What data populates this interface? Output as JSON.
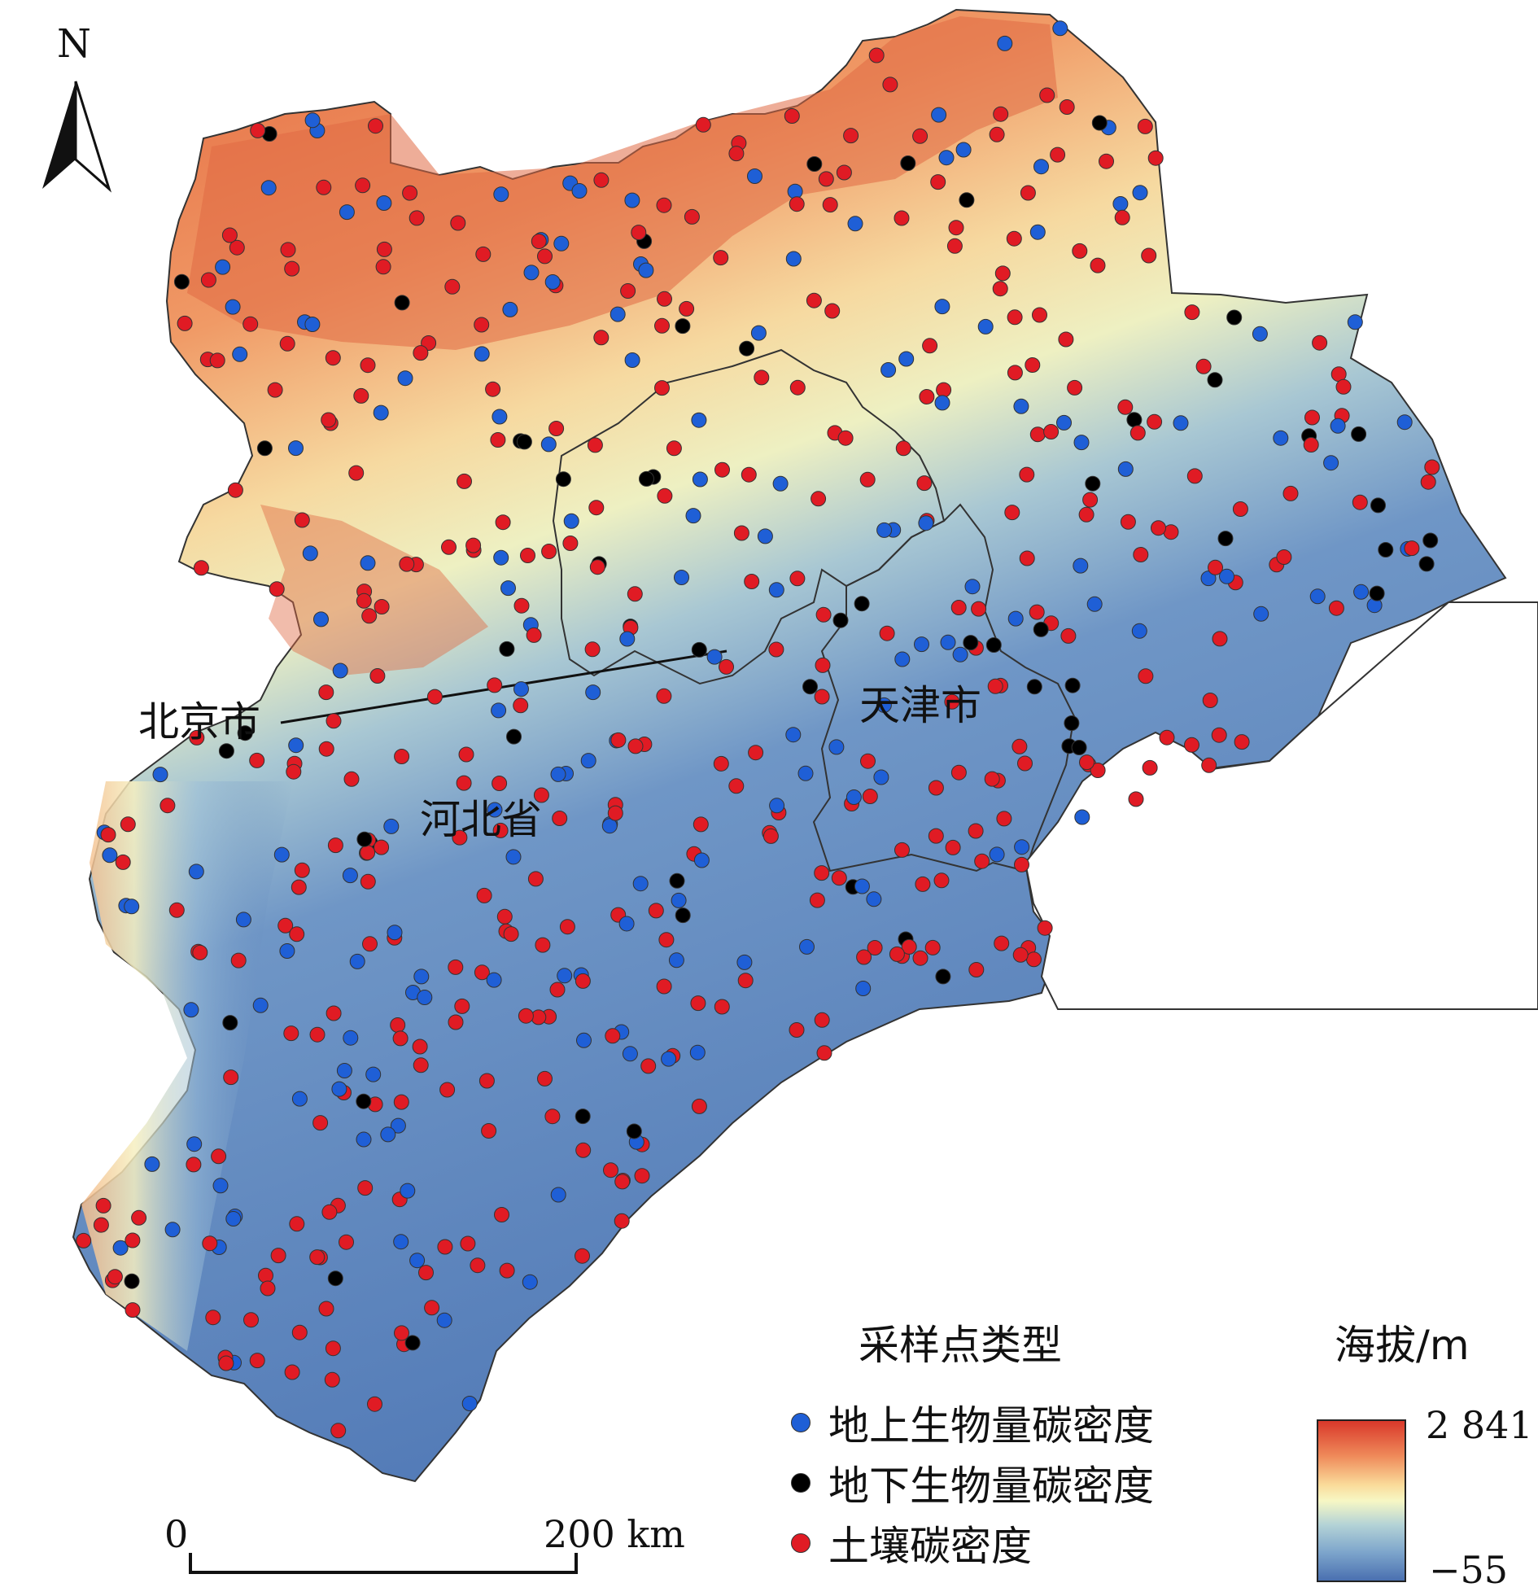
{
  "north": {
    "label": "N"
  },
  "places": {
    "beijing": "北京市",
    "tianjin": "天津市",
    "hebei": "河北省"
  },
  "legend": {
    "title": "采样点类型",
    "items": [
      {
        "label": "地上生物量碳密度",
        "color": "#1f5fd6"
      },
      {
        "label": "地下生物量碳密度",
        "color": "#000000"
      },
      {
        "label": "土壤碳密度",
        "color": "#e01b24"
      }
    ]
  },
  "elevation": {
    "title": "海拔/m",
    "max": "2 841",
    "min": "−55"
  },
  "scale": {
    "start": "0",
    "end": "200 km"
  }
}
